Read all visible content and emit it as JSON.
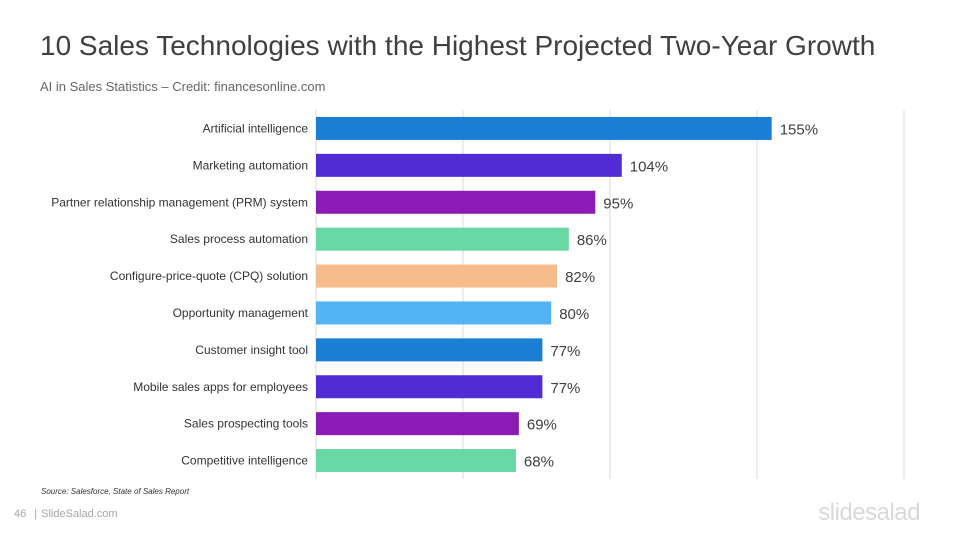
{
  "slide": {
    "title": "10 Sales Technologies with the Highest Projected Two-Year Growth",
    "subtitle": "AI in Sales Statistics – Credit: financesonline.com",
    "source": "Source: Salesforce,  State of Sales Report",
    "page_number": "46",
    "footer_separator": "|",
    "footer_site": "SlideSalad.com",
    "brand": "slidesalad"
  },
  "chart_data": {
    "type": "bar",
    "orientation": "horizontal",
    "categories": [
      "Artificial intelligence",
      "Marketing automation",
      "Partner relationship management (PRM) system",
      "Sales process automation",
      "Configure-price-quote (CPQ) solution",
      "Opportunity management",
      "Customer insight tool",
      "Mobile sales apps for employees",
      "Sales prospecting tools",
      "Competitive intelligence"
    ],
    "values": [
      155,
      104,
      95,
      86,
      82,
      80,
      77,
      77,
      69,
      68
    ],
    "labels": [
      "155%",
      "104%",
      "95%",
      "86%",
      "82%",
      "80%",
      "77%",
      "77%",
      "69%",
      "68%"
    ],
    "colors": [
      "#1a7fd4",
      "#512bd4",
      "#8c1ab4",
      "#68d8a4",
      "#f7bc8c",
      "#52b3f5",
      "#1a7fd4",
      "#512bd4",
      "#8c1ab4",
      "#68d8a4"
    ],
    "xlim": [
      0,
      200
    ],
    "grid": true,
    "title": "",
    "xlabel": "",
    "ylabel": ""
  }
}
